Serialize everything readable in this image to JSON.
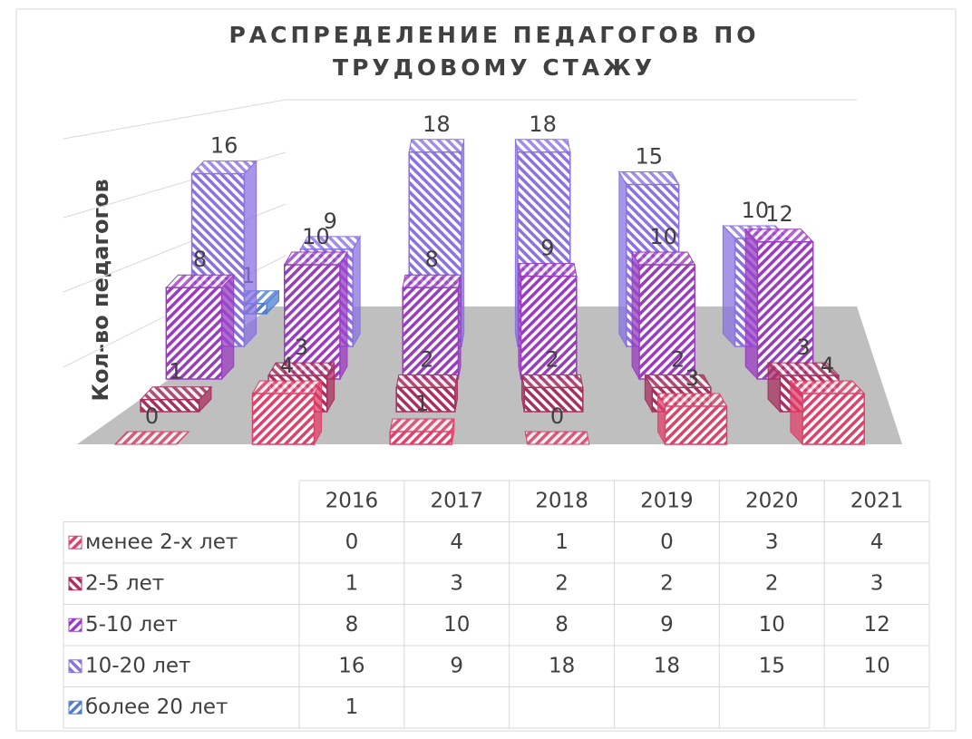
{
  "chart_data": {
    "type": "bar3d",
    "title": "РАСПРЕДЕЛЕНИЕ ПЕДАГОГОВ ПО ТРУДОВОМУ СТАЖУ",
    "ylabel": "Кол-во педагогов",
    "categories": [
      "2016",
      "2017",
      "2018",
      "2019",
      "2020",
      "2021"
    ],
    "ylim": [
      0,
      20
    ],
    "series": [
      {
        "name": "менее 2-х лет",
        "color": "#e0406a",
        "values": [
          0,
          4,
          1,
          0,
          3,
          4
        ]
      },
      {
        "name": "2-5 лет",
        "color": "#a8305e",
        "values": [
          1,
          3,
          2,
          2,
          2,
          3
        ]
      },
      {
        "name": "5-10 лет",
        "color": "#9a3cc0",
        "values": [
          8,
          10,
          8,
          9,
          10,
          12
        ]
      },
      {
        "name": "10-20 лет",
        "color": "#8a72e0",
        "values": [
          16,
          9,
          18,
          18,
          15,
          10
        ]
      },
      {
        "name": "более 20 лет",
        "color": "#4f7fd0",
        "values": [
          1,
          null,
          null,
          null,
          null,
          null
        ]
      }
    ],
    "data_table": true
  }
}
